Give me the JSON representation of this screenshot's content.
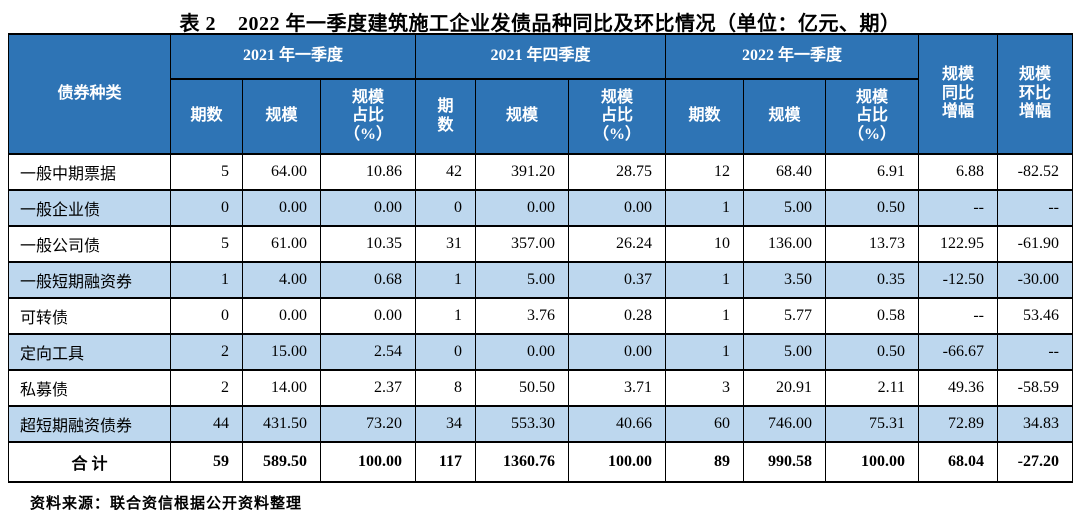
{
  "title": "表 2    2022 年一季度建筑施工企业发债品种同比及环比情况（单位：亿元、期）",
  "source_note": "资料来源：联合资信根据公开资料整理",
  "colors": {
    "header_bg": "#2E74B5",
    "header_text": "#FFFFFF",
    "alt_row_bg": "#BDD7EE",
    "border": "#000000"
  },
  "table": {
    "corner_header": "债券种类",
    "groups": [
      {
        "label": "2021 年一季度",
        "columns": [
          "期数",
          "规模",
          "规模\n占比\n（%）"
        ]
      },
      {
        "label": "2021 年四季度",
        "columns": [
          "期\n数",
          "规模",
          "规模\n占比\n（%）"
        ]
      },
      {
        "label": "2022 年一季度",
        "columns": [
          "期数",
          "规模",
          "规模\n占比\n（%）"
        ]
      }
    ],
    "yoy_header": "规模\n同比\n增幅",
    "qoq_header": "规模\n环比\n增幅",
    "rows": [
      {
        "label": "一般中期票据",
        "values": [
          "5",
          "64.00",
          "10.86",
          "42",
          "391.20",
          "28.75",
          "12",
          "68.40",
          "6.91",
          "6.88",
          "-82.52"
        ]
      },
      {
        "label": "一般企业债",
        "values": [
          "0",
          "0.00",
          "0.00",
          "0",
          "0.00",
          "0.00",
          "1",
          "5.00",
          "0.50",
          "--",
          "--"
        ]
      },
      {
        "label": "一般公司债",
        "values": [
          "5",
          "61.00",
          "10.35",
          "31",
          "357.00",
          "26.24",
          "10",
          "136.00",
          "13.73",
          "122.95",
          "-61.90"
        ]
      },
      {
        "label": "一般短期融资券",
        "values": [
          "1",
          "4.00",
          "0.68",
          "1",
          "5.00",
          "0.37",
          "1",
          "3.50",
          "0.35",
          "-12.50",
          "-30.00"
        ]
      },
      {
        "label": "可转债",
        "values": [
          "0",
          "0.00",
          "0.00",
          "1",
          "3.76",
          "0.28",
          "1",
          "5.77",
          "0.58",
          "--",
          "53.46"
        ]
      },
      {
        "label": "定向工具",
        "values": [
          "2",
          "15.00",
          "2.54",
          "0",
          "0.00",
          "0.00",
          "1",
          "5.00",
          "0.50",
          "-66.67",
          "--"
        ]
      },
      {
        "label": "私募债",
        "values": [
          "2",
          "14.00",
          "2.37",
          "8",
          "50.50",
          "3.71",
          "3",
          "20.91",
          "2.11",
          "49.36",
          "-58.59"
        ]
      },
      {
        "label": "超短期融资债券",
        "values": [
          "44",
          "431.50",
          "73.20",
          "34",
          "553.30",
          "40.66",
          "60",
          "746.00",
          "75.31",
          "72.89",
          "34.83"
        ]
      }
    ],
    "total_row": {
      "label": "合  计",
      "values": [
        "59",
        "589.50",
        "100.00",
        "117",
        "1360.76",
        "100.00",
        "89",
        "990.58",
        "100.00",
        "68.04",
        "-27.20"
      ]
    }
  }
}
